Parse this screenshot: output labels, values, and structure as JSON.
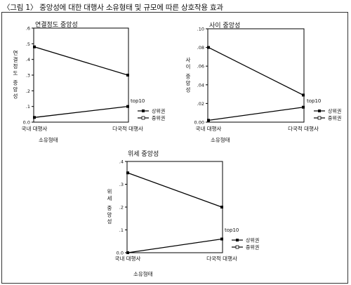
{
  "figure_title": "〈그림 1〉 중앙성에 대한 대행사 소유형태 및 규모에 따른 상호작용 효과",
  "chart_data": [
    {
      "type": "line",
      "title": "연결정도 중앙성",
      "xlabel": "소유형태",
      "ylabel": "연결정도 중앙성",
      "categories": [
        "국내 대행사",
        "다국적 대행사"
      ],
      "ylim": [
        0.0,
        0.6
      ],
      "yticks": [
        0.0,
        0.1,
        0.2,
        0.3,
        0.4,
        0.5,
        0.6
      ],
      "ytick_labels": [
        "0.0",
        ".1",
        ".2",
        ".3",
        ".4",
        ".5",
        ".6"
      ],
      "legend_title": "top10",
      "legend_placement": "right",
      "series": [
        {
          "name": "상위권",
          "values": [
            0.03,
            0.1
          ]
        },
        {
          "name": "중위권",
          "values": [
            0.48,
            0.3
          ]
        }
      ]
    },
    {
      "type": "line",
      "title": "사이 중앙성",
      "xlabel": "소유형태",
      "ylabel": "사이 중앙성",
      "categories": [
        "국내 대행사",
        "다국적 대행사"
      ],
      "ylim": [
        0.0,
        0.1
      ],
      "yticks": [
        0.0,
        0.02,
        0.04,
        0.06,
        0.08,
        0.1
      ],
      "ytick_labels": [
        "0.00",
        ".02",
        ".04",
        ".06",
        ".08",
        ".10"
      ],
      "legend_title": "top10",
      "legend_placement": "right",
      "series": [
        {
          "name": "상위권",
          "values": [
            0.002,
            0.016
          ]
        },
        {
          "name": "중위권",
          "values": [
            0.08,
            0.029
          ]
        }
      ]
    },
    {
      "type": "line",
      "title": "위세 중앙성",
      "xlabel": "소유형태",
      "ylabel": "위세 중앙성",
      "categories": [
        "국내 대행사",
        "다국적 대행사"
      ],
      "ylim": [
        0.0,
        0.4
      ],
      "yticks": [
        0.0,
        0.1,
        0.2,
        0.3,
        0.4
      ],
      "ytick_labels": [
        "0.0",
        ".1",
        ".2",
        ".3",
        ".4"
      ],
      "legend_title": "top10",
      "legend_placement": "right",
      "series": [
        {
          "name": "상위권",
          "values": [
            0.0,
            0.06
          ]
        },
        {
          "name": "중위권",
          "values": [
            0.35,
            0.2
          ]
        }
      ]
    }
  ]
}
